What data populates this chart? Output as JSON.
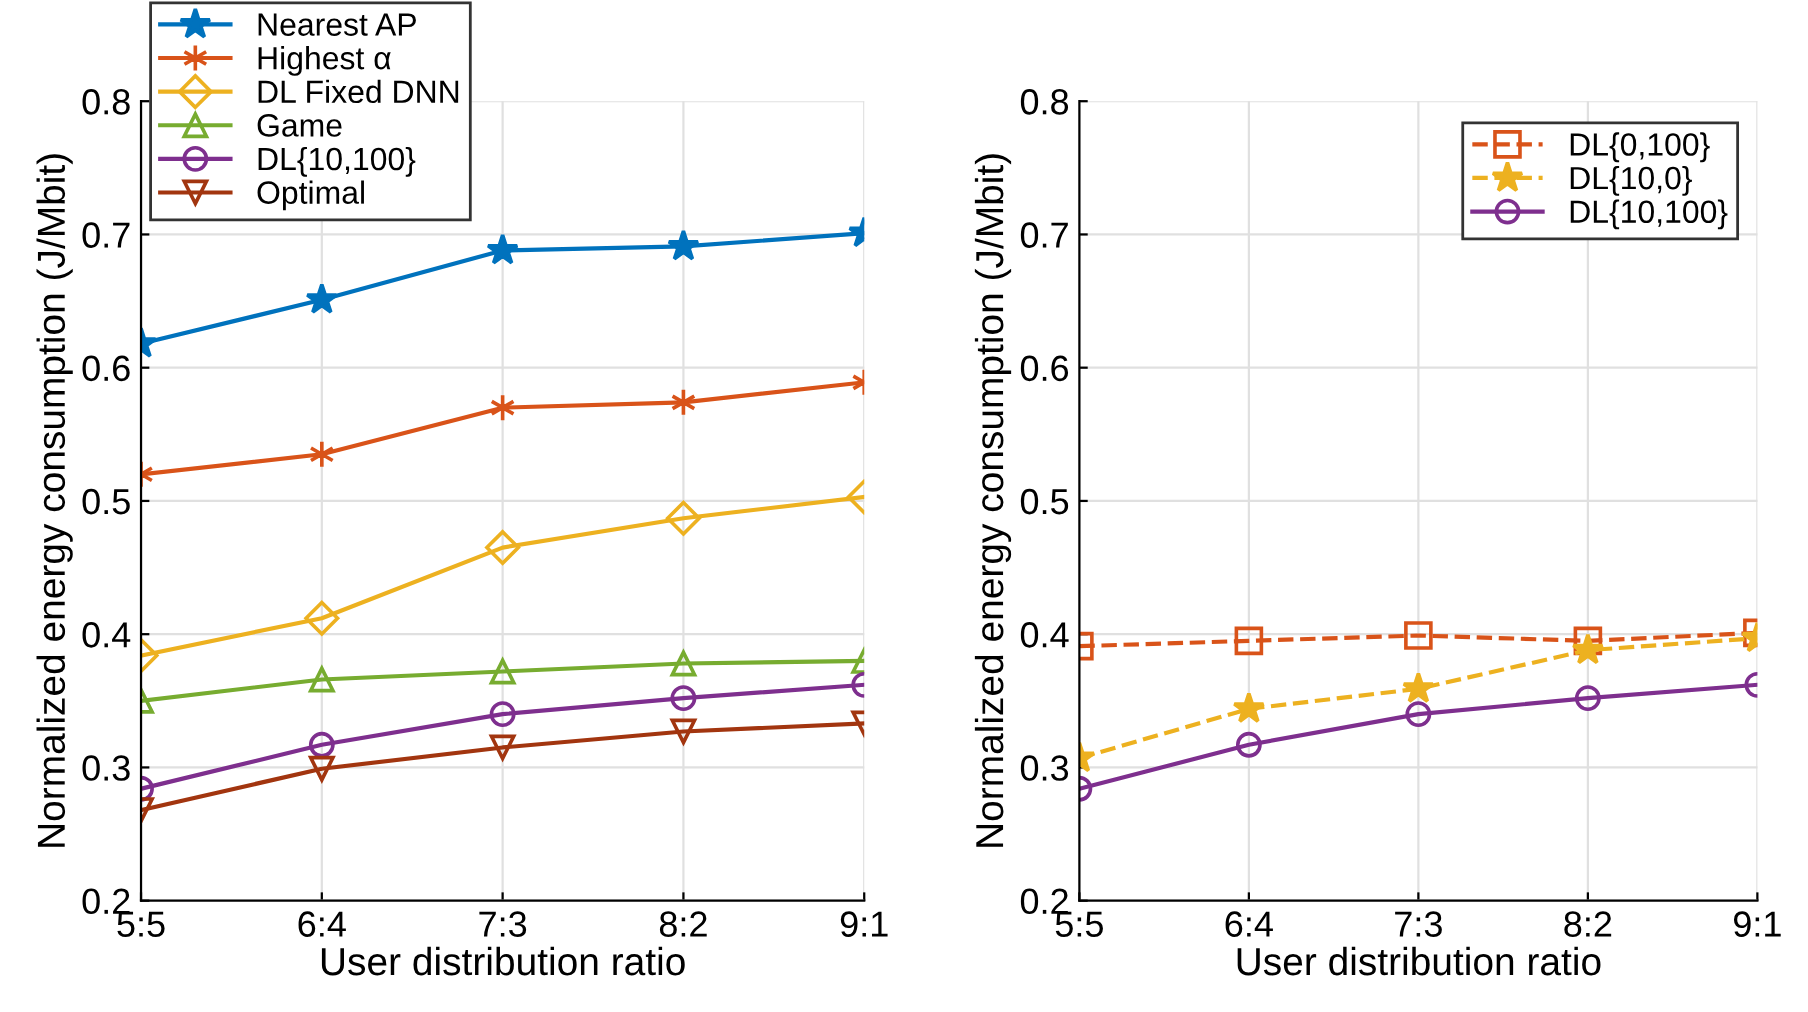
{
  "chart_data": [
    {
      "type": "line",
      "xlabel": "User distribution ratio",
      "ylabel": "Normalized energy consumption (J/Mbit)",
      "categories": [
        "5:5",
        "6:4",
        "7:3",
        "8:2",
        "9:1"
      ],
      "ylim": [
        0.2,
        0.8
      ],
      "yticks": [
        0.2,
        0.3,
        0.4,
        0.5,
        0.6,
        0.7,
        0.8
      ],
      "grid": true,
      "legend": "top left",
      "line_style": "solid",
      "series": [
        {
          "name": "Nearest AP",
          "color": "#0072bd",
          "marker": "star",
          "values": [
            0.618,
            0.651,
            0.688,
            0.691,
            0.701
          ]
        },
        {
          "name": "Highest α",
          "color": "#d95319",
          "marker": "cross",
          "values": [
            0.52,
            0.535,
            0.57,
            0.574,
            0.589
          ]
        },
        {
          "name": "DL Fixed DNN",
          "color": "#edb120",
          "marker": "diamond",
          "values": [
            0.384,
            0.412,
            0.465,
            0.487,
            0.503
          ]
        },
        {
          "name": "Game",
          "color": "#77ac30",
          "marker": "triangle",
          "values": [
            0.35,
            0.366,
            0.372,
            0.378,
            0.38
          ]
        },
        {
          "name": "DL{10,100}",
          "color": "#7e2f8e",
          "marker": "circle",
          "values": [
            0.284,
            0.317,
            0.34,
            0.352,
            0.362
          ]
        },
        {
          "name": "Optimal",
          "color": "#a2350f",
          "marker": "triangle-down",
          "values": [
            0.268,
            0.299,
            0.315,
            0.327,
            0.333
          ]
        }
      ]
    },
    {
      "type": "line",
      "xlabel": "User distribution ratio",
      "ylabel": "Normalized energy consumption (J/Mbit)",
      "categories": [
        "5:5",
        "6:4",
        "7:3",
        "8:2",
        "9:1"
      ],
      "ylim": [
        0.2,
        0.8
      ],
      "yticks": [
        0.2,
        0.3,
        0.4,
        0.5,
        0.6,
        0.7,
        0.8
      ],
      "grid": true,
      "legend": "top right",
      "series": [
        {
          "name": "DL{0,100}",
          "color": "#d95319",
          "marker": "square",
          "line_style": "dashed",
          "values": [
            0.391,
            0.395,
            0.399,
            0.395,
            0.401
          ]
        },
        {
          "name": "DL{10,0}",
          "color": "#edb120",
          "marker": "star",
          "line_style": "dashed",
          "values": [
            0.307,
            0.344,
            0.359,
            0.388,
            0.397
          ]
        },
        {
          "name": "DL{10,100}",
          "color": "#7e2f8e",
          "marker": "circle",
          "line_style": "solid",
          "values": [
            0.284,
            0.317,
            0.34,
            0.352,
            0.362
          ]
        }
      ]
    }
  ]
}
